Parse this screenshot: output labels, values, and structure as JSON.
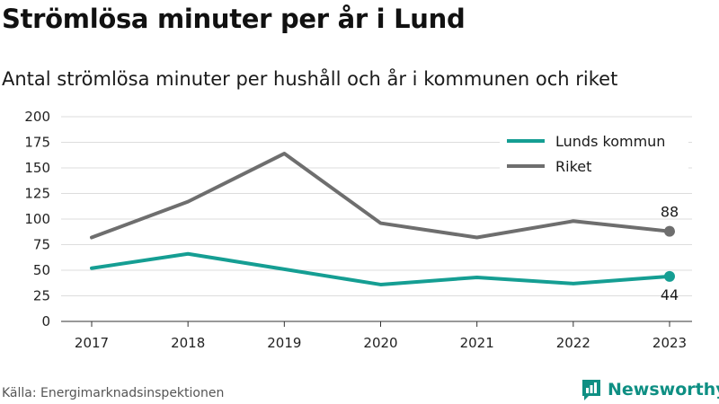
{
  "header": {
    "title": "Strömlösa minuter per år i Lund",
    "subtitle": "Antal strömlösa minuter per hushåll och år i kommunen och riket"
  },
  "footer": {
    "source": "Källa: Energimarknadsinspektionen",
    "brand": "Newsworthy"
  },
  "colors": {
    "lund": "#159e93",
    "riket": "#6e6e6e",
    "brand": "#0e8f83"
  },
  "icons": {
    "brand_logo": "bar-chart-icon"
  },
  "chart_data": {
    "type": "line",
    "title": "Strömlösa minuter per år i Lund",
    "subtitle": "Antal strömlösa minuter per hushåll och år i kommunen och riket",
    "xlabel": "",
    "ylabel": "",
    "x": [
      "2017",
      "2018",
      "2019",
      "2020",
      "2021",
      "2022",
      "2023"
    ],
    "ylim": [
      0,
      200
    ],
    "yticks": [
      "0",
      "25",
      "50",
      "75",
      "100",
      "125",
      "150",
      "175",
      "200"
    ],
    "grid": true,
    "legend": "top-right",
    "series": [
      {
        "name": "Lunds kommun",
        "color": "#159e93",
        "values": [
          52,
          66,
          51,
          36,
          43,
          37,
          44
        ],
        "end_label": "44"
      },
      {
        "name": "Riket",
        "color": "#6e6e6e",
        "values": [
          82,
          117,
          164,
          96,
          82,
          98,
          88
        ],
        "end_label": "88"
      }
    ]
  }
}
